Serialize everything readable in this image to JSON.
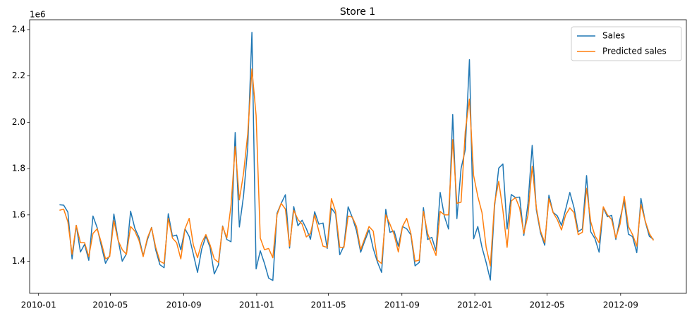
{
  "chart_data": {
    "type": "line",
    "title": "Store 1",
    "y_offset_label": "1e6",
    "x": [
      "2010-02-05",
      "2010-02-12",
      "2010-02-19",
      "2010-02-26",
      "2010-03-05",
      "2010-03-12",
      "2010-03-19",
      "2010-03-26",
      "2010-04-02",
      "2010-04-09",
      "2010-04-16",
      "2010-04-23",
      "2010-04-30",
      "2010-05-07",
      "2010-05-14",
      "2010-05-21",
      "2010-05-28",
      "2010-06-04",
      "2010-06-11",
      "2010-06-18",
      "2010-06-25",
      "2010-07-02",
      "2010-07-09",
      "2010-07-16",
      "2010-07-23",
      "2010-07-30",
      "2010-08-06",
      "2010-08-13",
      "2010-08-20",
      "2010-08-27",
      "2010-09-03",
      "2010-09-10",
      "2010-09-17",
      "2010-09-24",
      "2010-10-01",
      "2010-10-08",
      "2010-10-15",
      "2010-10-22",
      "2010-10-29",
      "2010-11-05",
      "2010-11-12",
      "2010-11-19",
      "2010-11-26",
      "2010-12-03",
      "2010-12-10",
      "2010-12-17",
      "2010-12-24",
      "2010-12-31",
      "2011-01-07",
      "2011-01-14",
      "2011-01-21",
      "2011-01-28",
      "2011-02-04",
      "2011-02-11",
      "2011-02-18",
      "2011-02-25",
      "2011-03-04",
      "2011-03-11",
      "2011-03-18",
      "2011-03-25",
      "2011-04-01",
      "2011-04-08",
      "2011-04-15",
      "2011-04-22",
      "2011-04-29",
      "2011-05-06",
      "2011-05-13",
      "2011-05-20",
      "2011-05-27",
      "2011-06-03",
      "2011-06-10",
      "2011-06-17",
      "2011-06-24",
      "2011-07-01",
      "2011-07-08",
      "2011-07-15",
      "2011-07-22",
      "2011-07-29",
      "2011-08-05",
      "2011-08-12",
      "2011-08-19",
      "2011-08-26",
      "2011-09-02",
      "2011-09-09",
      "2011-09-16",
      "2011-09-23",
      "2011-09-30",
      "2011-10-07",
      "2011-10-14",
      "2011-10-21",
      "2011-10-28",
      "2011-11-04",
      "2011-11-11",
      "2011-11-18",
      "2011-11-25",
      "2011-12-02",
      "2011-12-09",
      "2011-12-16",
      "2011-12-23",
      "2011-12-30",
      "2012-01-06",
      "2012-01-13",
      "2012-01-20",
      "2012-01-27",
      "2012-02-03",
      "2012-02-10",
      "2012-02-17",
      "2012-02-24",
      "2012-03-02",
      "2012-03-09",
      "2012-03-16",
      "2012-03-23",
      "2012-03-30",
      "2012-04-06",
      "2012-04-13",
      "2012-04-20",
      "2012-04-27",
      "2012-05-04",
      "2012-05-11",
      "2012-05-18",
      "2012-05-25",
      "2012-06-01",
      "2012-06-08",
      "2012-06-15",
      "2012-06-22",
      "2012-06-29",
      "2012-07-06",
      "2012-07-13",
      "2012-07-20",
      "2012-07-27",
      "2012-08-03",
      "2012-08-10",
      "2012-08-17",
      "2012-08-24",
      "2012-08-31",
      "2012-09-07",
      "2012-09-14",
      "2012-09-21",
      "2012-09-28",
      "2012-10-05",
      "2012-10-12",
      "2012-10-19",
      "2012-10-26"
    ],
    "series": [
      {
        "name": "Sales",
        "color": "#1f77b4",
        "values": [
          1.644,
          1.642,
          1.612,
          1.41,
          1.555,
          1.44,
          1.473,
          1.404,
          1.595,
          1.545,
          1.466,
          1.391,
          1.425,
          1.604,
          1.494,
          1.4,
          1.432,
          1.616,
          1.543,
          1.503,
          1.423,
          1.492,
          1.546,
          1.449,
          1.385,
          1.372,
          1.605,
          1.508,
          1.513,
          1.449,
          1.54,
          1.507,
          1.43,
          1.352,
          1.453,
          1.508,
          1.459,
          1.345,
          1.384,
          1.552,
          1.494,
          1.484,
          1.956,
          1.548,
          1.683,
          1.891,
          2.388,
          1.367,
          1.445,
          1.391,
          1.327,
          1.317,
          1.607,
          1.65,
          1.687,
          1.457,
          1.636,
          1.553,
          1.577,
          1.541,
          1.495,
          1.614,
          1.56,
          1.565,
          1.455,
          1.629,
          1.605,
          1.428,
          1.466,
          1.635,
          1.589,
          1.532,
          1.439,
          1.489,
          1.535,
          1.455,
          1.397,
          1.352,
          1.624,
          1.525,
          1.531,
          1.465,
          1.55,
          1.54,
          1.514,
          1.38,
          1.395,
          1.631,
          1.494,
          1.503,
          1.445,
          1.697,
          1.595,
          1.539,
          2.033,
          1.584,
          1.8,
          1.881,
          2.27,
          1.497,
          1.55,
          1.46,
          1.394,
          1.319,
          1.636,
          1.802,
          1.82,
          1.539,
          1.688,
          1.675,
          1.677,
          1.511,
          1.65,
          1.9,
          1.621,
          1.522,
          1.469,
          1.685,
          1.611,
          1.596,
          1.555,
          1.624,
          1.697,
          1.631,
          1.528,
          1.54,
          1.77,
          1.527,
          1.498,
          1.439,
          1.631,
          1.592,
          1.598,
          1.494,
          1.582,
          1.662,
          1.517,
          1.506,
          1.437,
          1.671,
          1.573,
          1.508,
          1.494
        ]
      },
      {
        "name": "Predicted sales",
        "color": "#ff7f0e",
        "values": [
          1.62,
          1.625,
          1.57,
          1.43,
          1.555,
          1.48,
          1.48,
          1.42,
          1.52,
          1.54,
          1.48,
          1.41,
          1.42,
          1.575,
          1.49,
          1.45,
          1.43,
          1.55,
          1.53,
          1.49,
          1.42,
          1.5,
          1.545,
          1.46,
          1.4,
          1.39,
          1.585,
          1.5,
          1.48,
          1.41,
          1.54,
          1.585,
          1.47,
          1.415,
          1.48,
          1.515,
          1.47,
          1.41,
          1.395,
          1.55,
          1.5,
          1.64,
          1.895,
          1.665,
          1.78,
          1.95,
          2.23,
          2.03,
          1.5,
          1.45,
          1.455,
          1.415,
          1.6,
          1.65,
          1.625,
          1.465,
          1.62,
          1.58,
          1.56,
          1.505,
          1.52,
          1.6,
          1.53,
          1.465,
          1.46,
          1.67,
          1.615,
          1.46,
          1.46,
          1.595,
          1.59,
          1.55,
          1.45,
          1.5,
          1.55,
          1.53,
          1.405,
          1.39,
          1.6,
          1.56,
          1.515,
          1.44,
          1.55,
          1.585,
          1.52,
          1.4,
          1.405,
          1.615,
          1.52,
          1.47,
          1.425,
          1.615,
          1.6,
          1.6,
          1.925,
          1.65,
          1.655,
          1.96,
          2.1,
          1.77,
          1.68,
          1.61,
          1.46,
          1.38,
          1.65,
          1.745,
          1.62,
          1.46,
          1.66,
          1.675,
          1.63,
          1.52,
          1.6,
          1.81,
          1.63,
          1.53,
          1.48,
          1.67,
          1.61,
          1.58,
          1.535,
          1.6,
          1.63,
          1.61,
          1.515,
          1.525,
          1.715,
          1.57,
          1.51,
          1.48,
          1.635,
          1.6,
          1.58,
          1.5,
          1.56,
          1.68,
          1.55,
          1.515,
          1.465,
          1.645,
          1.575,
          1.52,
          1.49
        ]
      }
    ],
    "xlim": [
      "2009-12-17",
      "2012-12-20"
    ],
    "xticks": [
      "2010-01",
      "2010-05",
      "2010-09",
      "2011-01",
      "2011-05",
      "2011-09",
      "2012-01",
      "2012-05",
      "2012-09"
    ],
    "ylim": [
      1.2615,
      2.4425
    ],
    "yticks": [
      {
        "value": 1.4,
        "label": "1.4"
      },
      {
        "value": 1.6,
        "label": "1.6"
      },
      {
        "value": 1.8,
        "label": "1.8"
      },
      {
        "value": 2.0,
        "label": "2.0"
      },
      {
        "value": 2.2,
        "label": "2.2"
      },
      {
        "value": 2.4,
        "label": "2.4"
      }
    ],
    "grid": false,
    "legend": "upper right"
  }
}
